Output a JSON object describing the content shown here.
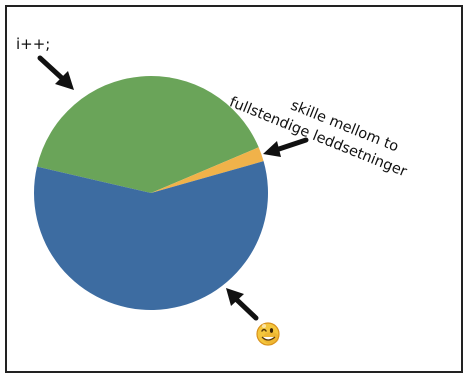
{
  "chart_data": {
    "type": "pie",
    "slices": [
      {
        "label": "i++;",
        "value": 40.0,
        "color": "#6aa459"
      },
      {
        "label": "skille mellom to fullstendige leddsetninger",
        "value": 2.0,
        "color": "#f0b24a"
      },
      {
        "label": "😉",
        "value": 58.0,
        "color": "#3d6ca1"
      }
    ],
    "annotations": {
      "green": "i++;",
      "orange_line1": "skille mellom to",
      "orange_line2": "fullstendige leddsetninger",
      "blue_icon": "winking-smiley-icon"
    }
  },
  "colors": {
    "frame": "#222222",
    "arrow": "#111111",
    "smiley_face": "#f4c63d",
    "smiley_shade": "#e19a1f"
  }
}
